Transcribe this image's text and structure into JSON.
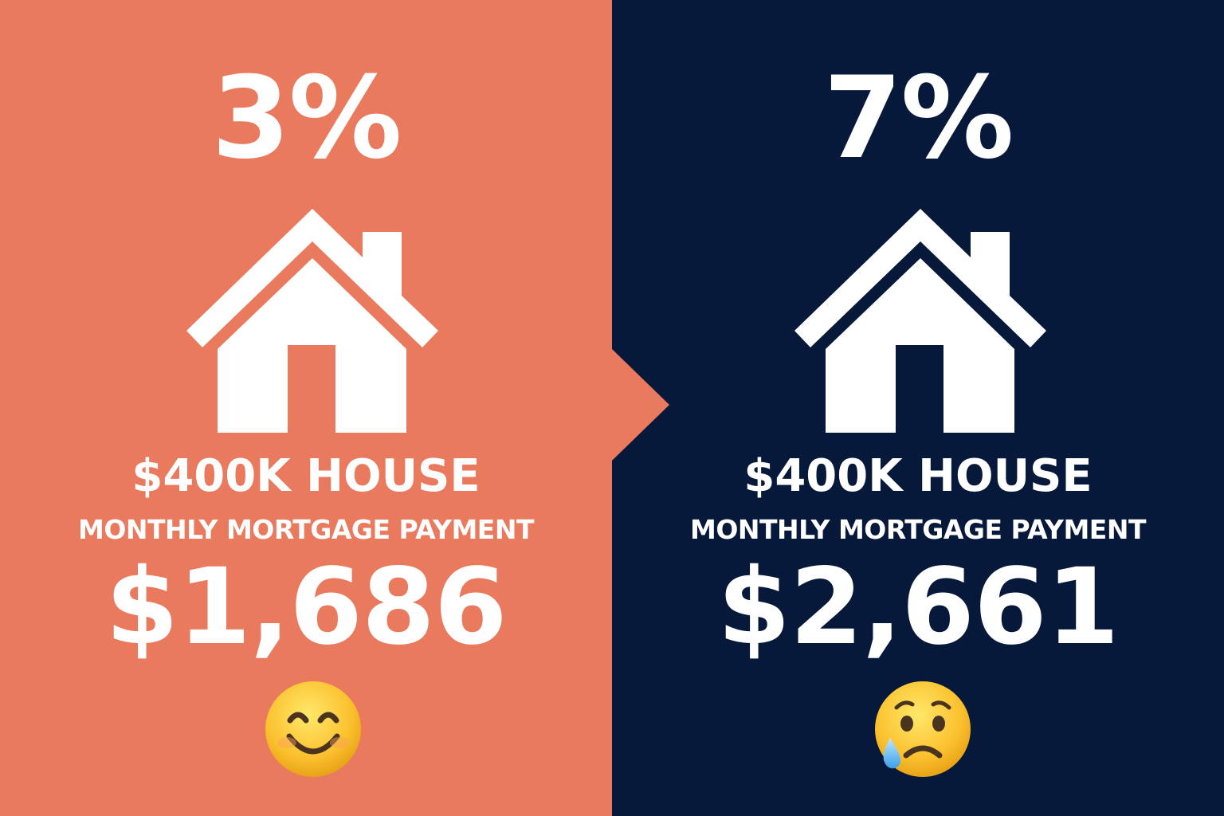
{
  "colors": {
    "left_background": "#E97A5E",
    "right_background": "#06193A",
    "text": "#FFFFFF"
  },
  "left": {
    "rate": "3%",
    "house_price": "$400K HOUSE",
    "caption": "MONTHLY MORTGAGE PAYMENT",
    "payment": "$1,686",
    "icon": "house-icon",
    "emoji": "smiling-face-emoji"
  },
  "right": {
    "rate": "7%",
    "house_price": "$400K HOUSE",
    "caption": "MONTHLY MORTGAGE PAYMENT",
    "payment": "$2,661",
    "icon": "house-icon",
    "emoji": "sad-relieved-face-emoji"
  }
}
